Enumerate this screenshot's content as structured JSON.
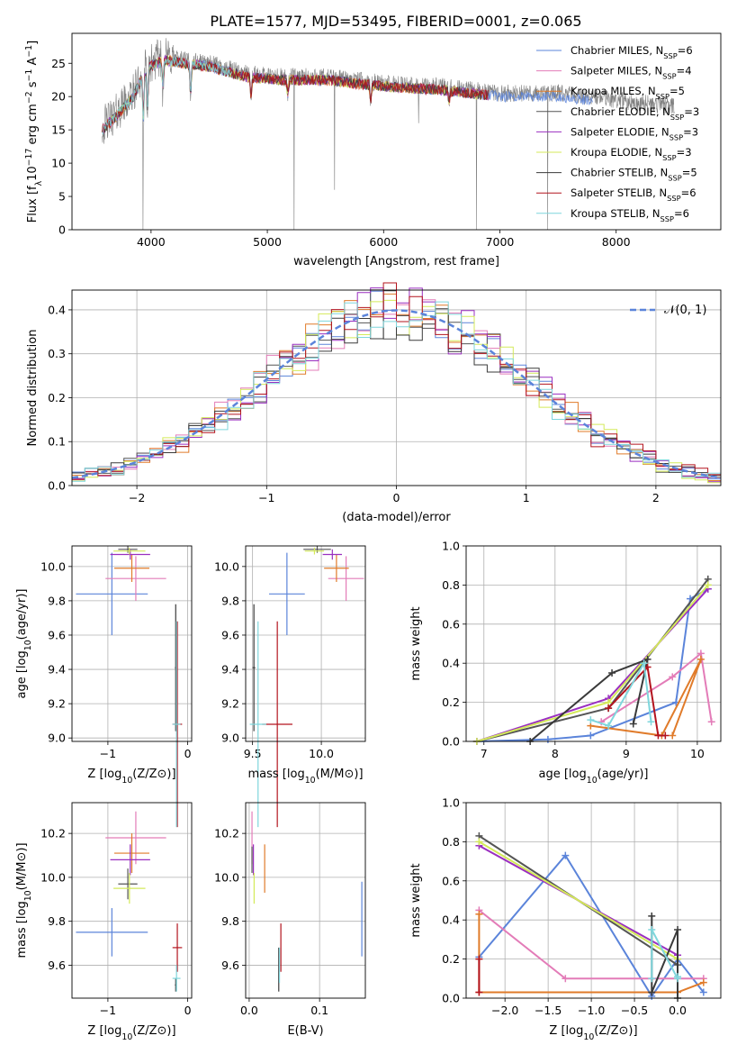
{
  "title": "PLATE=1577, MJD=53495, FIBERID=0001, z=0.065",
  "colors": {
    "c1": "#5b84da",
    "c2": "#e37cb8",
    "c3": "#e07b2a",
    "c4": "#555555",
    "c5": "#9a2fc0",
    "c6": "#d4ea5a",
    "c7": "#3a3a3a",
    "c8": "#b3141e",
    "c9": "#7fd6dc",
    "grid": "#b0b0b0"
  },
  "chart_data": [
    {
      "id": "spectrum",
      "type": "line",
      "xlabel": "wavelength [Angstrom, rest frame]",
      "ylabel": "Flux [f_λ10^-17 erg cm^-2 s^-1 A^-1]",
      "xlim": [
        3320,
        8900
      ],
      "ylim": [
        0,
        29.5
      ],
      "xticks": [
        4000,
        5000,
        6000,
        7000,
        8000
      ],
      "yticks": [
        0,
        5,
        10,
        15,
        20,
        25
      ],
      "grid": false,
      "legend_position": "top-right",
      "data_range": [
        3580,
        8500
      ],
      "continuum": [
        [
          3580,
          15.5
        ],
        [
          3700,
          17.5
        ],
        [
          3850,
          20.5
        ],
        [
          3950,
          24.5
        ],
        [
          4100,
          26
        ],
        [
          4500,
          25
        ],
        [
          4800,
          23.5
        ],
        [
          5100,
          23
        ],
        [
          5500,
          23
        ],
        [
          6000,
          22
        ],
        [
          6500,
          21.5
        ],
        [
          7000,
          20.5
        ],
        [
          7500,
          20.5
        ],
        [
          8000,
          19.5
        ],
        [
          8500,
          18.5
        ]
      ],
      "absorption_lines": [
        [
          3934,
          9
        ],
        [
          3969,
          8
        ],
        [
          4101,
          5
        ],
        [
          4340,
          6
        ],
        [
          4861,
          4
        ],
        [
          5176,
          3
        ],
        [
          5890,
          3
        ],
        [
          6563,
          2
        ]
      ],
      "spikes": [
        [
          3930,
          0
        ],
        [
          5230,
          0
        ],
        [
          5577,
          6
        ],
        [
          6300,
          16
        ],
        [
          6800,
          0
        ],
        [
          7410,
          0
        ]
      ],
      "legend": [
        {
          "name": "Chabrier MILES, N_SSP=6",
          "color": "c1"
        },
        {
          "name": "Salpeter MILES, N_SSP=4",
          "color": "c2"
        },
        {
          "name": "Kroupa MILES, N_SSP=5",
          "color": "c3"
        },
        {
          "name": "Chabrier ELODIE, N_SSP=3",
          "color": "c4"
        },
        {
          "name": "Salpeter ELODIE, N_SSP=3",
          "color": "c5"
        },
        {
          "name": "Kroupa ELODIE, N_SSP=3",
          "color": "c6"
        },
        {
          "name": "Chabrier STELIB, N_SSP=5",
          "color": "c7"
        },
        {
          "name": "Salpeter STELIB, N_SSP=6",
          "color": "c8"
        },
        {
          "name": "Kroupa STELIB, N_SSP=6",
          "color": "c9"
        }
      ]
    },
    {
      "id": "residuals",
      "type": "line",
      "xlabel": "(data-model)/error",
      "ylabel": "Normed distribution",
      "xlim": [
        -2.5,
        2.5
      ],
      "ylim": [
        0,
        0.445
      ],
      "xticks": [
        -2,
        -1,
        0,
        1,
        2
      ],
      "yticks": [
        0.0,
        0.1,
        0.2,
        0.3,
        0.4
      ],
      "grid": true,
      "bin_width": 0.1,
      "legend": [
        {
          "name": "𝒩(0, 1)",
          "color": "c1"
        }
      ]
    },
    {
      "id": "age-vs-Z",
      "type": "scatter",
      "xlabel": "Z [log10(Z/Z⊙)]",
      "ylabel": "age [log10(age/yr)]",
      "xlim": [
        -1.45,
        0.05
      ],
      "ylim": [
        8.98,
        10.12
      ],
      "xticks": [
        -1,
        0
      ],
      "yticks": [
        9.0,
        9.2,
        9.4,
        9.6,
        9.8,
        10.0
      ],
      "grid": true,
      "points": [
        {
          "c": "c1",
          "x": -0.95,
          "y": 9.84,
          "ex": 0.45,
          "ey": 0.24
        },
        {
          "c": "c2",
          "x": -0.65,
          "y": 9.93,
          "ex": 0.38,
          "ey": 0.13
        },
        {
          "c": "c3",
          "x": -0.7,
          "y": 9.99,
          "ex": 0.22,
          "ey": 0.08
        },
        {
          "c": "c4",
          "x": -0.75,
          "y": 10.1,
          "ex": 0.12,
          "ey": 0.02
        },
        {
          "c": "c5",
          "x": -0.72,
          "y": 10.07,
          "ex": 0.25,
          "ey": 0.03
        },
        {
          "c": "c6",
          "x": -0.73,
          "y": 10.09,
          "ex": 0.2,
          "ey": 0.02
        },
        {
          "c": "c7",
          "x": -0.15,
          "y": 9.41,
          "ex": 0.01,
          "ey": 0.37
        },
        {
          "c": "c8",
          "x": -0.13,
          "y": 9.08,
          "ex": 0.06,
          "ey": 0.6
        },
        {
          "c": "c9",
          "x": -0.14,
          "y": 9.08,
          "ex": 0.05,
          "ey": 0.6
        }
      ]
    },
    {
      "id": "age-vs-mass",
      "type": "scatter",
      "xlabel": "mass [log10(M/M⊙)]",
      "ylabel": "",
      "xlim": [
        9.45,
        10.32
      ],
      "ylim": [
        8.98,
        10.12
      ],
      "xticks": [
        9.5,
        10.0
      ],
      "yticks": [
        9.0,
        9.2,
        9.4,
        9.6,
        9.8,
        10.0
      ],
      "grid": true,
      "points": [
        {
          "c": "c1",
          "x": 9.75,
          "y": 9.84,
          "ex": 0.13,
          "ey": 0.24
        },
        {
          "c": "c2",
          "x": 10.18,
          "y": 9.93,
          "ex": 0.13,
          "ey": 0.13
        },
        {
          "c": "c3",
          "x": 10.11,
          "y": 9.99,
          "ex": 0.09,
          "ey": 0.08
        },
        {
          "c": "c4",
          "x": 9.97,
          "y": 10.1,
          "ex": 0.1,
          "ey": 0.02
        },
        {
          "c": "c5",
          "x": 10.08,
          "y": 10.07,
          "ex": 0.07,
          "ey": 0.03
        },
        {
          "c": "c6",
          "x": 9.95,
          "y": 10.09,
          "ex": 0.07,
          "ey": 0.02
        },
        {
          "c": "c7",
          "x": 9.51,
          "y": 9.41,
          "ex": 0.01,
          "ey": 0.37
        },
        {
          "c": "c8",
          "x": 9.68,
          "y": 9.08,
          "ex": 0.11,
          "ey": 0.6
        },
        {
          "c": "c9",
          "x": 9.54,
          "y": 9.08,
          "ex": 0.06,
          "ey": 0.6
        }
      ]
    },
    {
      "id": "weight-vs-age",
      "type": "line",
      "xlabel": "age [log10(age/yr)]",
      "ylabel": "mass weight",
      "xlim": [
        6.75,
        10.33
      ],
      "ylim": [
        0,
        1.0
      ],
      "xticks": [
        7,
        8,
        9,
        10
      ],
      "yticks": [
        0.0,
        0.2,
        0.4,
        0.6,
        0.8,
        1.0
      ],
      "grid": true,
      "series": [
        {
          "c": "c1",
          "pts": [
            [
              6.9,
              0.0
            ],
            [
              7.9,
              0.01
            ],
            [
              8.5,
              0.03
            ],
            [
              9.7,
              0.2
            ],
            [
              9.9,
              0.73
            ],
            [
              10.15,
              0.78
            ]
          ]
        },
        {
          "c": "c2",
          "pts": [
            [
              8.65,
              0.1
            ],
            [
              9.65,
              0.33
            ],
            [
              10.05,
              0.45
            ],
            [
              10.2,
              0.1
            ]
          ]
        },
        {
          "c": "c3",
          "pts": [
            [
              8.5,
              0.08
            ],
            [
              9.5,
              0.03
            ],
            [
              10.05,
              0.42
            ],
            [
              9.65,
              0.03
            ]
          ]
        },
        {
          "c": "c4",
          "pts": [
            [
              6.9,
              0.0
            ],
            [
              8.75,
              0.17
            ],
            [
              10.15,
              0.83
            ]
          ]
        },
        {
          "c": "c5",
          "pts": [
            [
              6.9,
              0.0
            ],
            [
              8.75,
              0.22
            ],
            [
              10.15,
              0.78
            ]
          ]
        },
        {
          "c": "c6",
          "pts": [
            [
              6.9,
              0.0
            ],
            [
              8.75,
              0.2
            ],
            [
              10.15,
              0.8
            ]
          ]
        },
        {
          "c": "c7",
          "pts": [
            [
              7.65,
              0.0
            ],
            [
              8.8,
              0.35
            ],
            [
              9.3,
              0.42
            ],
            [
              9.1,
              0.09
            ]
          ]
        },
        {
          "c": "c8",
          "pts": [
            [
              8.75,
              0.17
            ],
            [
              9.3,
              0.38
            ],
            [
              9.45,
              0.03
            ],
            [
              9.55,
              0.03
            ]
          ]
        },
        {
          "c": "c9",
          "pts": [
            [
              8.5,
              0.11
            ],
            [
              8.75,
              0.08
            ],
            [
              9.25,
              0.4
            ],
            [
              9.35,
              0.1
            ]
          ]
        }
      ]
    },
    {
      "id": "mass-vs-Z",
      "type": "scatter",
      "xlabel": "Z [log10(Z/Z⊙)]",
      "ylabel": "mass [log10(M/M⊙)]",
      "xlim": [
        -1.45,
        0.05
      ],
      "ylim": [
        9.45,
        10.34
      ],
      "xticks": [
        -1,
        0
      ],
      "yticks": [
        9.6,
        9.8,
        10.0,
        10.2
      ],
      "grid": true,
      "points": [
        {
          "c": "c1",
          "x": -0.95,
          "y": 9.75,
          "ex": 0.45,
          "ey": 0.11
        },
        {
          "c": "c2",
          "x": -0.65,
          "y": 10.18,
          "ex": 0.38,
          "ey": 0.12
        },
        {
          "c": "c3",
          "x": -0.7,
          "y": 10.11,
          "ex": 0.22,
          "ey": 0.09
        },
        {
          "c": "c4",
          "x": -0.75,
          "y": 9.97,
          "ex": 0.12,
          "ey": 0.07
        },
        {
          "c": "c5",
          "x": -0.72,
          "y": 10.08,
          "ex": 0.25,
          "ey": 0.07
        },
        {
          "c": "c6",
          "x": -0.73,
          "y": 9.95,
          "ex": 0.2,
          "ey": 0.07
        },
        {
          "c": "c7",
          "x": -0.15,
          "y": 9.51,
          "ex": 0.01,
          "ey": 0.03
        },
        {
          "c": "c8",
          "x": -0.13,
          "y": 9.68,
          "ex": 0.06,
          "ey": 0.11
        },
        {
          "c": "c9",
          "x": -0.14,
          "y": 9.54,
          "ex": 0.05,
          "ey": 0.06
        }
      ]
    },
    {
      "id": "mass-vs-ebv",
      "type": "scatter",
      "xlabel": "E(B-V)",
      "ylabel": "",
      "xlim": [
        -0.005,
        0.165
      ],
      "ylim": [
        9.45,
        10.34
      ],
      "xticks": [
        0.0,
        0.1
      ],
      "yticks": [
        9.6,
        9.8,
        10.0,
        10.2
      ],
      "grid": true,
      "points": [
        {
          "c": "c1",
          "x": 0.16,
          "y": 9.81,
          "ex": 0,
          "ey": 0.17
        },
        {
          "c": "c2",
          "x": 0.004,
          "y": 10.18,
          "ex": 0,
          "ey": 0.12
        },
        {
          "c": "c3",
          "x": 0.022,
          "y": 10.04,
          "ex": 0,
          "ey": 0.11
        },
        {
          "c": "c4",
          "x": 0.004,
          "y": 10.08,
          "ex": 0,
          "ey": 0.06
        },
        {
          "c": "c5",
          "x": 0.006,
          "y": 10.08,
          "ex": 0,
          "ey": 0.07
        },
        {
          "c": "c6",
          "x": 0.007,
          "y": 9.95,
          "ex": 0,
          "ey": 0.07
        },
        {
          "c": "c7",
          "x": 0.042,
          "y": 9.58,
          "ex": 0,
          "ey": 0.1
        },
        {
          "c": "c8",
          "x": 0.045,
          "y": 9.68,
          "ex": 0,
          "ey": 0.11
        },
        {
          "c": "c9",
          "x": 0.043,
          "y": 9.6,
          "ex": 0,
          "ey": 0.08
        }
      ]
    },
    {
      "id": "weight-vs-Z",
      "type": "line",
      "xlabel": "Z [log10(Z/Z⊙)]",
      "ylabel": "mass weight",
      "xlim": [
        -2.45,
        0.5
      ],
      "ylim": [
        0,
        1.0
      ],
      "xticks": [
        -2.0,
        -1.5,
        -1.0,
        -0.5,
        0.0
      ],
      "yticks": [
        0.0,
        0.2,
        0.4,
        0.6,
        0.8,
        1.0
      ],
      "grid": true,
      "series": [
        {
          "c": "c1",
          "pts": [
            [
              -2.3,
              0.21
            ],
            [
              -1.3,
              0.73
            ],
            [
              -0.3,
              0.01
            ],
            [
              0.0,
              0.2
            ],
            [
              0.3,
              0.03
            ]
          ]
        },
        {
          "c": "c2",
          "pts": [
            [
              -2.3,
              0.45
            ],
            [
              -1.3,
              0.1
            ],
            [
              0.3,
              0.1
            ]
          ]
        },
        {
          "c": "c3",
          "pts": [
            [
              -2.3,
              0.43
            ],
            [
              -2.3,
              0.03
            ],
            [
              0.0,
              0.03
            ],
            [
              0.3,
              0.08
            ]
          ]
        },
        {
          "c": "c4",
          "pts": [
            [
              -2.3,
              0.83
            ],
            [
              0.0,
              0.17
            ]
          ]
        },
        {
          "c": "c5",
          "pts": [
            [
              -2.3,
              0.78
            ],
            [
              0.0,
              0.22
            ]
          ]
        },
        {
          "c": "c6",
          "pts": [
            [
              -2.3,
              0.8
            ],
            [
              0.0,
              0.2
            ]
          ]
        },
        {
          "c": "c7",
          "pts": [
            [
              -0.3,
              0.42
            ],
            [
              -0.3,
              0.03
            ],
            [
              0.0,
              0.35
            ],
            [
              0.0,
              0.0
            ]
          ]
        },
        {
          "c": "c8",
          "pts": [
            [
              -2.3,
              0.03
            ],
            [
              -2.3,
              0.2
            ]
          ]
        },
        {
          "c": "c9",
          "pts": [
            [
              -0.3,
              0.1
            ],
            [
              -0.3,
              0.35
            ],
            [
              0.0,
              0.1
            ],
            [
              0.0,
              0.11
            ]
          ]
        }
      ]
    }
  ]
}
